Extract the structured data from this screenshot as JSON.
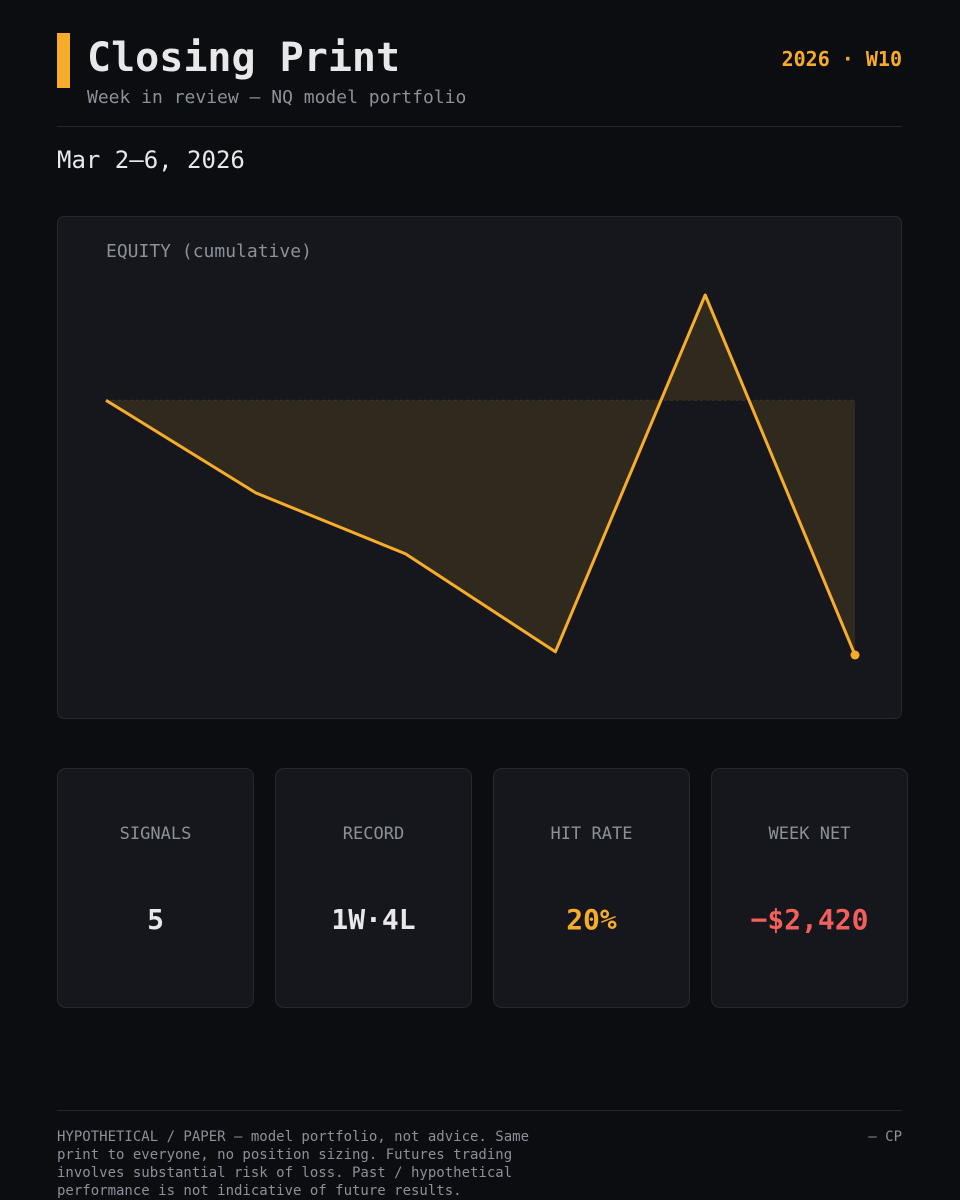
{
  "header": {
    "title": "Closing Print",
    "subtitle": "Week in review — NQ model portfolio",
    "week": "2026 · W10"
  },
  "date": "Mar 2–6, 2026",
  "chart_data": {
    "type": "line",
    "title": "EQUITY (cumulative)",
    "values": [
      0,
      -880,
      -1460,
      -2390,
      1000,
      -2420
    ],
    "color": "#f7ac2a"
  },
  "stats": [
    {
      "label": "SIGNALS",
      "value": "5",
      "color": "#e8e8ea"
    },
    {
      "label": "RECORD",
      "value": "1W·4L",
      "color": "#e8e8ea"
    },
    {
      "label": "HIT RATE",
      "value": "20%",
      "color": "#f7ac2a"
    },
    {
      "label": "WEEK NET",
      "value": "−$2,420",
      "color": "#f25f5c"
    }
  ],
  "footer": {
    "disclaimer": "HYPOTHETICAL / PAPER — model portfolio, not advice. Same print to everyone, no position sizing. Futures trading involves substantial risk of loss. Past / hypothetical performance is not indicative of future results.",
    "signature": "— CP"
  }
}
